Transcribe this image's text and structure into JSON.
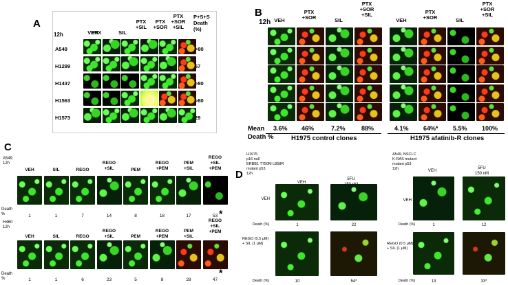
{
  "panels": {
    "A": "A",
    "B": "B",
    "C": "C",
    "D": "D"
  },
  "panel_a": {
    "time": "12h",
    "columns": [
      "VEH",
      "PTX",
      "SIL",
      "PTX\n+SIL",
      "PTX\n+SOR",
      "PTX\n+SOR\n+SIL"
    ],
    "death_header": "P+S+S\nDeath\n(%)",
    "rows": [
      {
        "label": "A549",
        "death": ">80"
      },
      {
        "label": "H1299",
        "death": "67"
      },
      {
        "label": "H1437",
        "death": ">80"
      },
      {
        "label": "H1563",
        "death": ">80"
      },
      {
        "label": "H1573",
        "death": "29"
      }
    ]
  },
  "panel_b": {
    "time": "12h",
    "columns_left": [
      "VEH",
      "PTX\n+SOR",
      "SIL",
      "PTX\n+SOR\n+SIL"
    ],
    "columns_right": [
      "VEH",
      "PTX\n+SOR",
      "SIL",
      "PTX\n+SOR\n+SIL"
    ],
    "mean_label": "Mean\nDeath %",
    "means_left": [
      "3.6%",
      "46%",
      "7.2%",
      "88%"
    ],
    "means_right": [
      "4.1%",
      "64%*",
      "5.5%",
      "100%"
    ],
    "group_left": "H1975 control clones",
    "group_right": "H1975 afatinib-R clones"
  },
  "panel_c": {
    "top": {
      "cell": "A549\n12h",
      "columns": [
        "VEH",
        "SIL",
        "REGO",
        "REGO\n+SIL",
        "PEM",
        "REGO\n+PEM",
        "PEM\n+SIL",
        "REGO\n+SIL\n+PEM"
      ],
      "death_label": "Death\n%",
      "deaths": [
        "1",
        "1",
        "7",
        "14",
        "8",
        "18",
        "17",
        "53"
      ],
      "star": "*"
    },
    "bottom": {
      "cell": "H460\n12h",
      "columns": [
        "VEH",
        "SIL",
        "REGO",
        "REGO\n+SIL",
        "PEM",
        "REGO\n+PEM",
        "PEM\n+SIL",
        "REGO\n+SIL\n+PEM"
      ],
      "death_label": "Death\n%",
      "deaths": [
        "1",
        "1",
        "6",
        "23",
        "5",
        "8",
        "28",
        "47"
      ],
      "star": "*"
    }
  },
  "panel_d": {
    "left": {
      "title": "H1975\np16 null\nERBB1 T750M L858R\nmutant p53\n12h",
      "col1": "VEH",
      "col2": "5FU\n150 nM",
      "row1": "VEH",
      "row2": "REGO (0.5 μM)\n+ SIL (1 μM)",
      "death_label": "Death (%)",
      "deaths_top": [
        "1",
        "22"
      ],
      "deaths_bottom": [
        "10",
        "54*"
      ]
    },
    "right": {
      "title": "A549, NSCLC\nK-RAS mutant\nmutant p53\n12h",
      "col1": "VEH",
      "col2": "5FU\n150 nM",
      "row1": "VEH",
      "row2": "REGO (0.5 μM)\n+ SIL (1 μM)",
      "death_label": "Death (%)",
      "deaths_top": [
        "1",
        "12"
      ],
      "deaths_bottom": [
        "13",
        "33*"
      ]
    }
  }
}
